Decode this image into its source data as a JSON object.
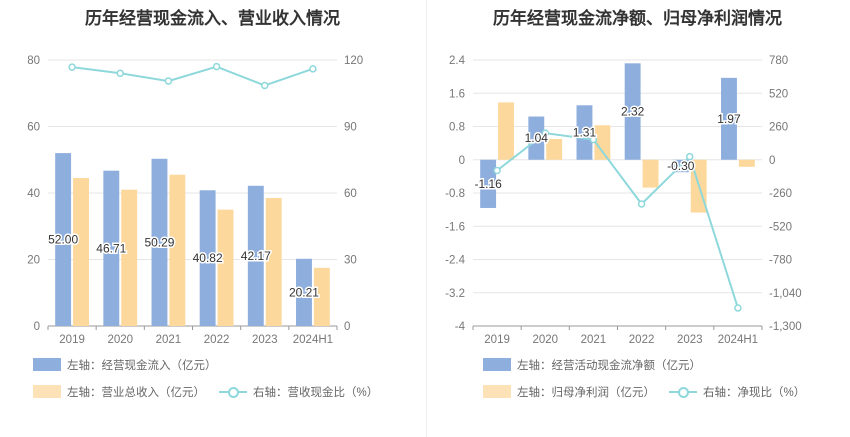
{
  "titles": {
    "left": "历年经营现金流入、营业收入情况",
    "right": "历年经营现金流净额、归母净利润情况"
  },
  "legend_left": {
    "item1": "左轴：经营现金流入（亿元）",
    "item2": "左轴：营业总收入（亿元）",
    "item3": "右轴：营收现金比（%）"
  },
  "legend_right": {
    "item1": "左轴：经营活动现金流净额（亿元）",
    "item2": "左轴：归母净利润（亿元）",
    "item3": "右轴：净现比（%）"
  },
  "colors": {
    "blue": "#8eaedd",
    "orange": "#fdd89c",
    "line": "#8ed8dc"
  },
  "chart_data": [
    {
      "type": "bar",
      "categories": [
        "2019",
        "2020",
        "2021",
        "2022",
        "2023",
        "2024H1"
      ],
      "series": [
        {
          "name": "左轴：经营现金流入（亿元）",
          "axis": "left",
          "values": [
            52.0,
            46.71,
            50.29,
            40.82,
            42.17,
            20.21
          ],
          "data_labels": [
            "52.00",
            "46.71",
            "50.29",
            "40.82",
            "42.17",
            "20.21"
          ]
        },
        {
          "name": "左轴：营业总收入（亿元）",
          "axis": "left",
          "values": [
            44.5,
            41.0,
            45.5,
            35.0,
            38.5,
            17.5
          ]
        },
        {
          "name": "右轴：营收现金比（%）",
          "axis": "right",
          "type": "line",
          "values": [
            116.8,
            114.0,
            110.5,
            117.0,
            108.5,
            116.0
          ]
        }
      ],
      "y_left": {
        "ylim": [
          0,
          80
        ],
        "ticks": [
          0,
          20,
          40,
          60,
          80
        ],
        "tick_labels": [
          "0",
          "20",
          "40",
          "60",
          "80"
        ]
      },
      "y_right": {
        "ylim": [
          0,
          120
        ],
        "ticks": [
          0,
          30,
          60,
          90,
          120
        ],
        "tick_labels": [
          "0",
          "30",
          "60",
          "90",
          "120"
        ]
      },
      "grid": true,
      "legend_position": "bottom"
    },
    {
      "type": "bar",
      "categories": [
        "2019",
        "2020",
        "2021",
        "2022",
        "2023",
        "2024H1"
      ],
      "series": [
        {
          "name": "左轴：经营活动现金流净额（亿元）",
          "axis": "left",
          "values": [
            -1.16,
            1.04,
            1.31,
            2.32,
            -0.3,
            1.97
          ],
          "data_labels": [
            "-1.16",
            "1.04",
            "1.31",
            "2.32",
            "-0.30",
            "1.97"
          ]
        },
        {
          "name": "左轴：归母净利润（亿元）",
          "axis": "left",
          "values": [
            1.38,
            0.5,
            0.83,
            -0.67,
            -1.27,
            -0.17
          ]
        },
        {
          "name": "右轴：净现比（%）",
          "axis": "right",
          "type": "line",
          "values": [
            -84,
            208,
            158,
            -346,
            24,
            -1159
          ]
        }
      ],
      "y_left": {
        "ylim": [
          -4,
          2.4
        ],
        "ticks": [
          -4,
          -3.2,
          -2.4,
          -1.6,
          -0.8,
          0,
          0.8,
          1.6,
          2.4
        ],
        "tick_labels": [
          "-4",
          "-3.2",
          "-2.4",
          "-1.6",
          "-0.8",
          "0",
          "0.8",
          "1.6",
          "2.4"
        ]
      },
      "y_right": {
        "ylim": [
          -1300,
          780
        ],
        "ticks": [
          -1300,
          -1040,
          -780,
          -520,
          -260,
          0,
          260,
          520,
          780
        ],
        "tick_labels": [
          "-1,300",
          "-1,040",
          "-780",
          "-520",
          "-260",
          "0",
          "260",
          "520",
          "780"
        ]
      },
      "grid": true,
      "legend_position": "bottom"
    }
  ]
}
